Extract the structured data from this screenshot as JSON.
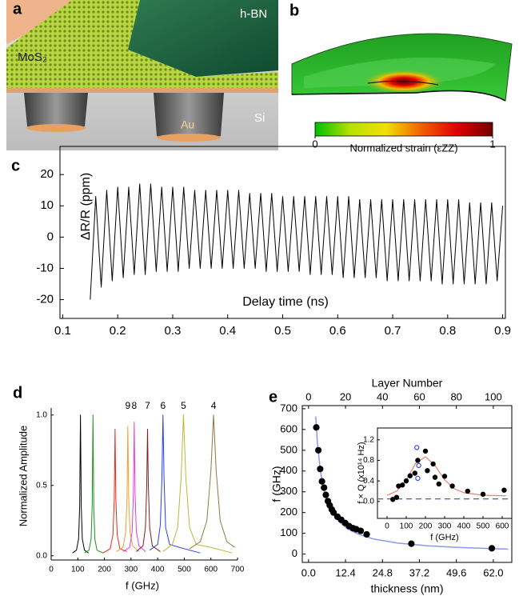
{
  "panel_labels": [
    "a",
    "b",
    "c",
    "d",
    "e"
  ],
  "panel_a": {
    "hbn": "h-BN",
    "mos2": "MoS₂",
    "si": "Si",
    "au": "Au"
  },
  "panel_b": {
    "colorbar": {
      "lim": [
        0,
        1
      ],
      "ticks": [
        0,
        1
      ],
      "label": "Normalized strain (εZZ)",
      "colors": [
        "#00c000",
        "#b8e000",
        "#f0e000",
        "#f06000",
        "#e00000",
        "#700000"
      ]
    }
  },
  "chart_data": [
    {
      "type": "line",
      "xlabel": "Delay time (ns)",
      "ylabel": "ΔR/R (ppm)",
      "color": "#000000",
      "x": [
        0.15,
        0.16,
        0.17,
        0.18,
        0.19,
        0.2,
        0.21,
        0.22,
        0.23,
        0.24,
        0.25,
        0.26,
        0.27,
        0.28,
        0.29,
        0.3,
        0.31,
        0.32,
        0.33,
        0.34,
        0.35,
        0.36,
        0.37,
        0.38,
        0.39,
        0.4,
        0.41,
        0.42,
        0.43,
        0.44,
        0.45,
        0.46,
        0.47,
        0.48,
        0.49,
        0.5,
        0.51,
        0.52,
        0.53,
        0.54,
        0.55,
        0.56,
        0.57,
        0.58,
        0.59,
        0.6,
        0.61,
        0.62,
        0.63,
        0.64,
        0.65,
        0.66,
        0.67,
        0.68,
        0.69,
        0.7,
        0.71,
        0.72,
        0.73,
        0.74,
        0.75,
        0.76,
        0.77,
        0.78,
        0.79,
        0.8,
        0.81,
        0.82,
        0.83,
        0.84,
        0.85,
        0.86,
        0.87,
        0.88,
        0.89,
        0.9
      ],
      "values": [
        -20,
        13,
        -16,
        15,
        -14,
        16,
        -13,
        16,
        -12,
        17,
        -12,
        17,
        -11,
        16,
        -11,
        16,
        -11,
        16,
        -10,
        15,
        -10,
        15,
        -10,
        15,
        -10,
        15,
        -10,
        15,
        -10,
        14,
        -10,
        14,
        -11,
        14,
        -11,
        13,
        -11,
        13,
        -11,
        13,
        -12,
        13,
        -12,
        13,
        -12,
        13,
        -13,
        13,
        -13,
        12,
        -13,
        12,
        -13,
        12,
        -14,
        12,
        -14,
        12,
        -14,
        12,
        -14,
        12,
        -14,
        12,
        -15,
        12,
        -15,
        12,
        -15,
        11,
        -15,
        11,
        -15,
        11,
        -14,
        10
      ],
      "xlim": [
        0.095,
        0.905
      ],
      "ylim": [
        -26,
        29
      ],
      "xticks": [
        0.1,
        0.2,
        0.3,
        0.4,
        0.5,
        0.6,
        0.7,
        0.8,
        0.9
      ],
      "yticks": [
        -20,
        -10,
        0,
        10,
        20
      ]
    },
    {
      "type": "line",
      "xlabel": "f (GHz)",
      "ylabel": "Normalized Amplitude",
      "series": [
        {
          "color": "#000000",
          "x": [
            80,
            95,
            103,
            107,
            110,
            113,
            117,
            125,
            140
          ],
          "values": [
            0.02,
            0.04,
            0.12,
            0.35,
            1.0,
            0.35,
            0.12,
            0.04,
            0.02
          ]
        },
        {
          "color": "#1f8f1f",
          "x": [
            125,
            142,
            150,
            154,
            157,
            160,
            164,
            172,
            195
          ],
          "values": [
            0.02,
            0.04,
            0.12,
            0.35,
            1.0,
            0.35,
            0.12,
            0.04,
            0.02
          ]
        },
        {
          "color": "#e8281e",
          "x": [
            195,
            222,
            232,
            237,
            240,
            243,
            248,
            258,
            285
          ],
          "values": [
            0.02,
            0.05,
            0.15,
            0.4,
            0.9,
            0.4,
            0.15,
            0.05,
            0.03
          ]
        },
        {
          "color": "#f0a030",
          "x": [
            245,
            270,
            280,
            285,
            288,
            291,
            296,
            306,
            330
          ],
          "values": [
            0.03,
            0.06,
            0.17,
            0.42,
            0.92,
            0.42,
            0.17,
            0.07,
            0.03
          ]
        },
        {
          "color": "#e23fe2",
          "x": [
            270,
            295,
            304,
            309,
            312,
            315,
            320,
            330,
            355
          ],
          "values": [
            0.03,
            0.06,
            0.17,
            0.45,
            0.95,
            0.45,
            0.17,
            0.07,
            0.03
          ]
        },
        {
          "color": "#8b1a1a",
          "x": [
            320,
            345,
            354,
            359,
            362,
            365,
            370,
            380,
            410
          ],
          "values": [
            0.03,
            0.07,
            0.2,
            0.5,
            0.9,
            0.5,
            0.2,
            0.07,
            0.03
          ]
        },
        {
          "color": "#2a3ee6",
          "x": [
            370,
            400,
            410,
            416,
            420,
            424,
            430,
            445,
            500,
            560
          ],
          "values": [
            0.04,
            0.08,
            0.22,
            0.55,
            1.0,
            0.55,
            0.2,
            0.08,
            0.05,
            0.02
          ]
        },
        {
          "color": "#b8b83a",
          "x": [
            420,
            455,
            475,
            488,
            497,
            506,
            520,
            545,
            600,
            680
          ],
          "values": [
            0.03,
            0.08,
            0.2,
            0.55,
            1.0,
            0.55,
            0.2,
            0.08,
            0.06,
            0.02
          ]
        },
        {
          "color": "#8c7a3c",
          "x": [
            520,
            560,
            585,
            600,
            610,
            620,
            635,
            660,
            690
          ],
          "values": [
            0.05,
            0.1,
            0.25,
            0.6,
            1.0,
            0.6,
            0.25,
            0.1,
            0.06
          ]
        }
      ],
      "annotations": [
        {
          "text": "9",
          "series": 3
        },
        {
          "text": "8",
          "series": 4
        },
        {
          "text": "7",
          "series": 5
        },
        {
          "text": "6",
          "series": 6
        },
        {
          "text": "5",
          "series": 7
        },
        {
          "text": "4",
          "series": 8
        }
      ],
      "xlim": [
        0,
        700
      ],
      "ylim": [
        -0.03,
        1.05
      ],
      "xticks": [
        0,
        100,
        200,
        300,
        400,
        500,
        600,
        700
      ],
      "yticks": [
        {
          "value": 0,
          "label": "0.0"
        },
        0.5,
        {
          "value": 1,
          "label": "1.0"
        }
      ]
    },
    {
      "type": "scatter",
      "xlabel": "thickness (nm)",
      "ylabel": "f (GHz)",
      "x2label": "Layer Number",
      "series": [
        {
          "type": "line",
          "color": "#8899ee",
          "x": [
            2.4,
            3,
            4,
            5,
            6,
            8,
            10,
            13,
            17,
            22,
            30,
            40,
            50,
            62,
            67
          ],
          "values": [
            663,
            530,
            398,
            318,
            265,
            199,
            159,
            122,
            94,
            72,
            53,
            40,
            32,
            26,
            24
          ]
        },
        {
          "color": "#000000",
          "x": [
            2.6,
            3.3,
            3.9,
            4.5,
            5.2,
            5.8,
            6.5,
            7.1,
            7.8,
            8.4,
            9.7,
            11,
            12.3,
            13.6,
            14.9,
            16,
            17.5,
            19.5,
            34.5,
            61.5
          ],
          "values": [
            610,
            500,
            410,
            350,
            320,
            285,
            255,
            235,
            215,
            200,
            180,
            165,
            150,
            135,
            125,
            120,
            112,
            95,
            50,
            28
          ]
        }
      ],
      "xlim": [
        -2.1,
        68.2
      ],
      "ylim": [
        -40,
        715
      ],
      "xticks": [
        {
          "value": 0,
          "label": "0.0"
        },
        12.4,
        24.8,
        37.2,
        49.6,
        {
          "value": 62,
          "label": "62.0"
        }
      ],
      "yticks": [
        0,
        100,
        200,
        300,
        400,
        500,
        600,
        700
      ],
      "x2lim": [
        -3.4,
        110
      ],
      "x2ticks": [
        0,
        20,
        40,
        60,
        80,
        100
      ]
    },
    {
      "type": "scatter",
      "xlabel": "f (GHz)",
      "ylabel": "f × Q (x10¹⁴ Hz)",
      "series": [
        {
          "type": "line",
          "color": "#f08070",
          "x": [
            0,
            50,
            100,
            150,
            200,
            250,
            300,
            350,
            400,
            500,
            620
          ],
          "values": [
            0.12,
            0.2,
            0.42,
            0.75,
            0.87,
            0.7,
            0.42,
            0.25,
            0.17,
            0.12,
            0.11
          ]
        },
        {
          "type": "line",
          "dash": true,
          "color": "#4455ee",
          "x": [
            -50,
            650
          ],
          "values": [
            0.05,
            0.05
          ]
        },
        {
          "color": "#000000",
          "x": [
            30,
            50,
            60,
            80,
            100,
            120,
            145,
            160,
            200,
            210,
            240,
            250,
            270,
            300,
            340,
            420,
            500,
            610
          ],
          "values": [
            0.04,
            0.08,
            0.3,
            0.32,
            0.4,
            0.5,
            0.55,
            0.8,
            0.98,
            0.6,
            0.73,
            0.47,
            0.34,
            0.49,
            0.3,
            0.2,
            0.14,
            0.22
          ]
        },
        {
          "color": "#3344ee",
          "marker": "open",
          "x": [
            155,
            165,
            160
          ],
          "values": [
            1.05,
            0.7,
            0.45
          ]
        }
      ],
      "xlim": [
        -50,
        650
      ],
      "ylim": [
        -0.33,
        1.43
      ],
      "xticks": [
        0,
        100,
        200,
        300,
        400,
        500,
        600
      ],
      "yticks": [
        {
          "value": 0,
          "label": "0.0"
        },
        0.4,
        0.8,
        1.2
      ]
    }
  ]
}
